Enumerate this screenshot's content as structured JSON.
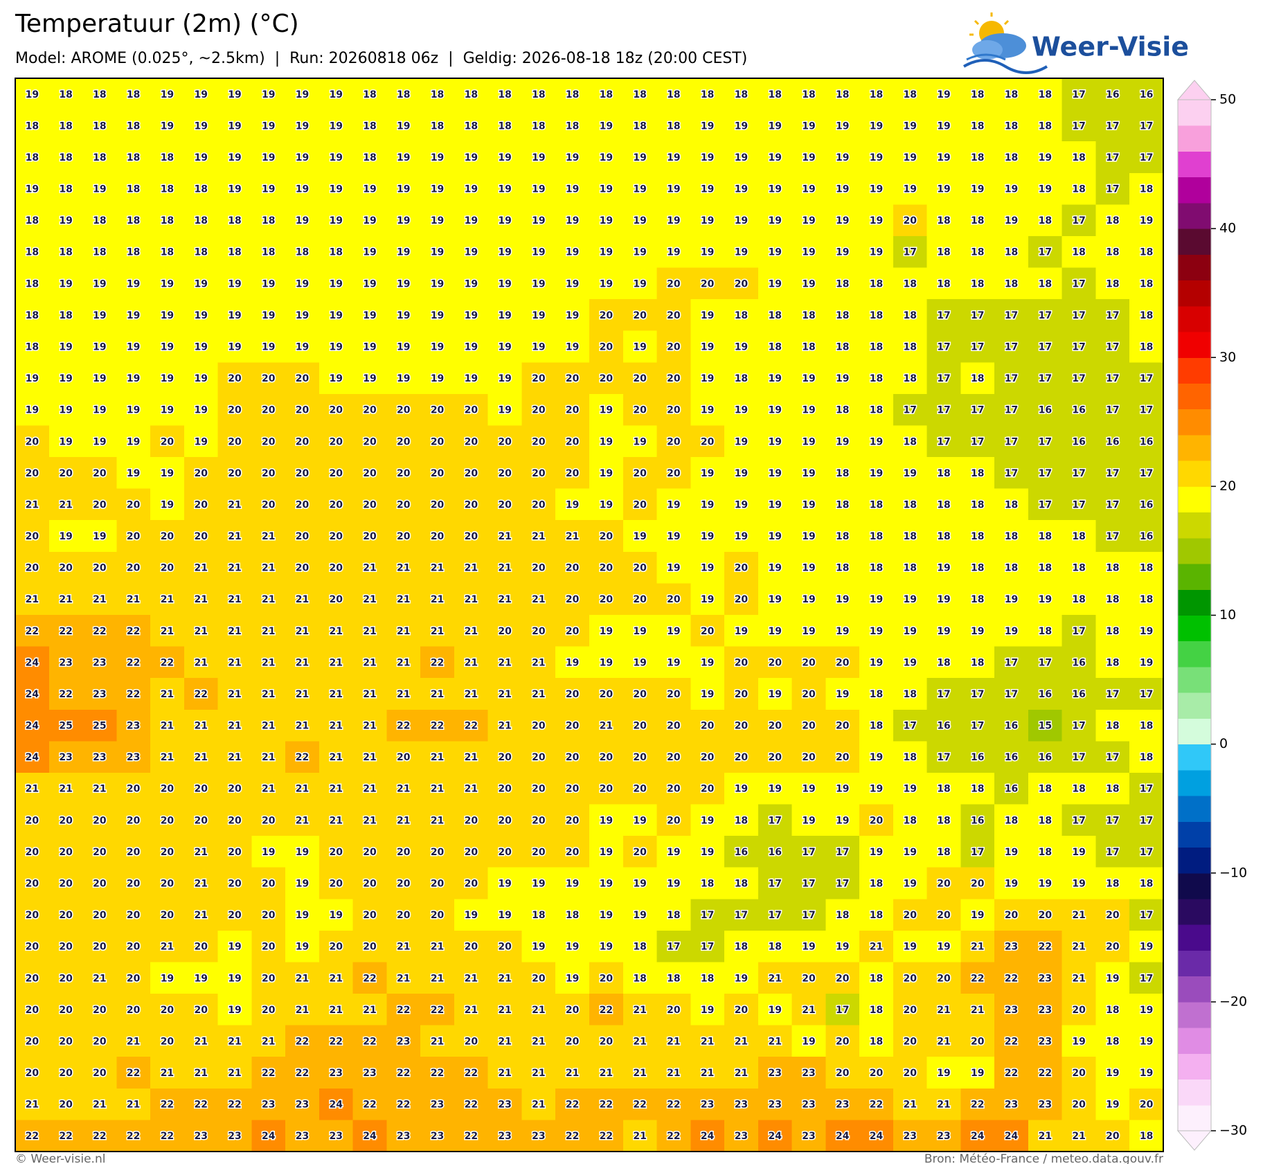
{
  "header": {
    "title": "Temperatuur (2m) (°C)",
    "subtitle": "Model: AROME (0.025°, ~2.5km)  |  Run: 20260818 06z  |  Geldig: 2026-08-18 18z (20:00 CEST)",
    "logo": "Weer-Visie"
  },
  "footer": {
    "left": "© Weer-visie.nl",
    "right": "Bron: Météo-France / meteo.data.gouv.fr"
  },
  "colorbar": {
    "lim": [
      -30,
      50
    ],
    "ticks": [
      {
        "value": -30,
        "label": "−30"
      },
      {
        "value": -20,
        "label": "−20"
      },
      {
        "value": -10,
        "label": "−10"
      },
      0,
      10,
      20,
      30,
      40,
      50
    ],
    "colors": [
      "#fdf0fd",
      "#fad8f8",
      "#f4b0f0",
      "#e08ce4",
      "#c070d0",
      "#9a4cbc",
      "#6a2aa8",
      "#4a0a8c",
      "#2a0a60",
      "#100a4c",
      "#001c80",
      "#0040a8",
      "#0070c8",
      "#00a0e0",
      "#30c8f8",
      "#d4fcdc",
      "#a8eca8",
      "#78e078",
      "#44d244",
      "#00c000",
      "#009600",
      "#5ab400",
      "#a0c800",
      "#ccd800",
      "#ffff00",
      "#ffd800",
      "#ffb400",
      "#ff8c00",
      "#ff6400",
      "#ff3c00",
      "#f00000",
      "#d80000",
      "#b40000",
      "#8c0010",
      "#5a0a30",
      "#800c70",
      "#b0009c",
      "#e040d0",
      "#f8a0dc",
      "#fcd0f0"
    ]
  },
  "map": {
    "values": [
      [
        19,
        18,
        18,
        18,
        19,
        19,
        19,
        19,
        19,
        19,
        18,
        18,
        18,
        18,
        18,
        18,
        18,
        18,
        18,
        18,
        18,
        18,
        18,
        18,
        18,
        18,
        18,
        19,
        18,
        18,
        18,
        17,
        16,
        16
      ],
      [
        18,
        18,
        18,
        18,
        19,
        19,
        19,
        19,
        19,
        19,
        18,
        19,
        18,
        18,
        18,
        18,
        18,
        19,
        18,
        18,
        19,
        19,
        19,
        19,
        19,
        19,
        19,
        19,
        18,
        18,
        18,
        17,
        17,
        17
      ],
      [
        18,
        18,
        18,
        18,
        18,
        19,
        19,
        19,
        19,
        19,
        18,
        19,
        19,
        19,
        19,
        19,
        19,
        19,
        19,
        19,
        19,
        19,
        19,
        19,
        19,
        19,
        19,
        19,
        18,
        18,
        19,
        18,
        17,
        17
      ],
      [
        19,
        18,
        19,
        18,
        18,
        18,
        19,
        19,
        19,
        19,
        19,
        19,
        19,
        19,
        19,
        19,
        19,
        19,
        19,
        19,
        19,
        19,
        19,
        19,
        19,
        19,
        19,
        19,
        19,
        19,
        19,
        18,
        17,
        18
      ],
      [
        18,
        19,
        18,
        18,
        18,
        18,
        18,
        18,
        19,
        19,
        19,
        19,
        19,
        19,
        19,
        19,
        19,
        19,
        19,
        19,
        19,
        19,
        19,
        19,
        19,
        19,
        20,
        18,
        18,
        19,
        18,
        17,
        18,
        19
      ],
      [
        18,
        18,
        18,
        18,
        18,
        18,
        18,
        18,
        18,
        18,
        19,
        19,
        19,
        19,
        19,
        19,
        19,
        19,
        19,
        19,
        19,
        19,
        19,
        19,
        19,
        19,
        17,
        18,
        18,
        18,
        17,
        18,
        18,
        18
      ],
      [
        18,
        19,
        19,
        19,
        19,
        19,
        19,
        19,
        19,
        19,
        19,
        19,
        19,
        19,
        19,
        19,
        19,
        19,
        19,
        20,
        20,
        20,
        19,
        19,
        18,
        18,
        18,
        18,
        18,
        18,
        18,
        17,
        18,
        18
      ],
      [
        18,
        18,
        19,
        19,
        19,
        19,
        19,
        19,
        19,
        19,
        19,
        19,
        19,
        19,
        19,
        19,
        19,
        20,
        20,
        20,
        19,
        18,
        18,
        18,
        18,
        18,
        18,
        17,
        17,
        17,
        17,
        17,
        17,
        18
      ],
      [
        18,
        19,
        19,
        19,
        19,
        19,
        19,
        19,
        19,
        19,
        19,
        19,
        19,
        19,
        19,
        19,
        19,
        20,
        19,
        20,
        19,
        19,
        18,
        18,
        18,
        18,
        18,
        17,
        17,
        17,
        17,
        17,
        17,
        18
      ],
      [
        19,
        19,
        19,
        19,
        19,
        19,
        20,
        20,
        20,
        19,
        19,
        19,
        19,
        19,
        19,
        20,
        20,
        20,
        20,
        20,
        19,
        18,
        19,
        19,
        19,
        18,
        18,
        17,
        18,
        17,
        17,
        17,
        17,
        17
      ],
      [
        19,
        19,
        19,
        19,
        19,
        19,
        20,
        20,
        20,
        20,
        20,
        20,
        20,
        20,
        19,
        20,
        20,
        19,
        20,
        20,
        19,
        19,
        19,
        19,
        18,
        18,
        17,
        17,
        17,
        17,
        16,
        16,
        17,
        17
      ],
      [
        20,
        19,
        19,
        19,
        20,
        19,
        20,
        20,
        20,
        20,
        20,
        20,
        20,
        20,
        20,
        20,
        20,
        19,
        19,
        20,
        20,
        19,
        19,
        19,
        19,
        19,
        18,
        17,
        17,
        17,
        17,
        16,
        16,
        16
      ],
      [
        20,
        20,
        20,
        19,
        19,
        20,
        20,
        20,
        20,
        20,
        20,
        20,
        20,
        20,
        20,
        20,
        20,
        19,
        20,
        20,
        19,
        19,
        19,
        19,
        18,
        19,
        19,
        18,
        18,
        17,
        17,
        17,
        17,
        17
      ],
      [
        21,
        21,
        20,
        20,
        19,
        20,
        21,
        20,
        20,
        20,
        20,
        20,
        20,
        20,
        20,
        20,
        19,
        19,
        20,
        19,
        19,
        19,
        19,
        19,
        18,
        18,
        18,
        18,
        18,
        18,
        17,
        17,
        17,
        16
      ],
      [
        20,
        19,
        19,
        20,
        20,
        20,
        21,
        21,
        20,
        20,
        20,
        20,
        20,
        20,
        21,
        21,
        21,
        20,
        19,
        19,
        19,
        19,
        19,
        19,
        18,
        18,
        18,
        18,
        18,
        18,
        18,
        18,
        17,
        16
      ],
      [
        20,
        20,
        20,
        20,
        20,
        21,
        21,
        21,
        20,
        20,
        21,
        21,
        21,
        21,
        21,
        20,
        20,
        20,
        20,
        19,
        19,
        20,
        19,
        19,
        18,
        18,
        18,
        19,
        18,
        18,
        18,
        18,
        18,
        18
      ],
      [
        21,
        21,
        21,
        21,
        21,
        21,
        21,
        21,
        21,
        20,
        21,
        21,
        21,
        21,
        21,
        21,
        20,
        20,
        20,
        20,
        19,
        20,
        19,
        19,
        19,
        19,
        19,
        19,
        18,
        19,
        19,
        18,
        18,
        18
      ],
      [
        22,
        22,
        22,
        22,
        21,
        21,
        21,
        21,
        21,
        21,
        21,
        21,
        21,
        21,
        20,
        20,
        20,
        19,
        19,
        19,
        20,
        19,
        19,
        19,
        19,
        19,
        19,
        19,
        19,
        19,
        18,
        17,
        18,
        19
      ],
      [
        24,
        23,
        23,
        22,
        22,
        21,
        21,
        21,
        21,
        21,
        21,
        21,
        22,
        21,
        21,
        21,
        19,
        19,
        19,
        19,
        19,
        20,
        20,
        20,
        20,
        19,
        19,
        18,
        18,
        17,
        17,
        16,
        18,
        19
      ],
      [
        24,
        22,
        23,
        22,
        21,
        22,
        21,
        21,
        21,
        21,
        21,
        21,
        21,
        21,
        21,
        21,
        20,
        20,
        20,
        20,
        19,
        20,
        19,
        20,
        19,
        18,
        18,
        17,
        17,
        17,
        16,
        16,
        17,
        17
      ],
      [
        24,
        25,
        25,
        23,
        21,
        21,
        21,
        21,
        21,
        21,
        21,
        22,
        22,
        22,
        21,
        20,
        20,
        21,
        20,
        20,
        20,
        20,
        20,
        20,
        20,
        18,
        17,
        16,
        17,
        16,
        15,
        17,
        18,
        18
      ],
      [
        24,
        23,
        23,
        23,
        21,
        21,
        21,
        21,
        22,
        21,
        21,
        20,
        21,
        21,
        20,
        20,
        20,
        20,
        20,
        20,
        20,
        20,
        20,
        20,
        20,
        19,
        18,
        17,
        16,
        16,
        16,
        17,
        17,
        18
      ],
      [
        21,
        21,
        21,
        20,
        20,
        20,
        20,
        21,
        21,
        21,
        21,
        21,
        21,
        21,
        20,
        20,
        20,
        20,
        20,
        20,
        20,
        19,
        19,
        19,
        19,
        19,
        19,
        18,
        18,
        16,
        18,
        18,
        18,
        17
      ],
      [
        20,
        20,
        20,
        20,
        20,
        20,
        20,
        20,
        21,
        21,
        21,
        21,
        21,
        20,
        20,
        20,
        20,
        19,
        19,
        20,
        19,
        18,
        17,
        19,
        19,
        20,
        18,
        18,
        16,
        18,
        18,
        17,
        17,
        17
      ],
      [
        20,
        20,
        20,
        20,
        20,
        21,
        20,
        19,
        19,
        20,
        20,
        20,
        20,
        20,
        20,
        20,
        20,
        19,
        20,
        19,
        19,
        16,
        16,
        17,
        17,
        19,
        19,
        18,
        17,
        19,
        18,
        19,
        17,
        17
      ],
      [
        20,
        20,
        20,
        20,
        20,
        21,
        20,
        20,
        19,
        20,
        20,
        20,
        20,
        20,
        19,
        19,
        19,
        19,
        19,
        19,
        18,
        18,
        17,
        17,
        17,
        18,
        19,
        20,
        20,
        19,
        19,
        19,
        18,
        18
      ],
      [
        20,
        20,
        20,
        20,
        20,
        21,
        20,
        20,
        19,
        19,
        20,
        20,
        20,
        19,
        19,
        18,
        18,
        19,
        19,
        18,
        17,
        17,
        17,
        17,
        18,
        18,
        20,
        20,
        19,
        20,
        20,
        21,
        20,
        17
      ],
      [
        20,
        20,
        20,
        20,
        21,
        20,
        19,
        20,
        19,
        20,
        20,
        21,
        21,
        20,
        20,
        19,
        19,
        19,
        18,
        17,
        17,
        18,
        18,
        19,
        19,
        21,
        19,
        19,
        21,
        23,
        22,
        21,
        20,
        19
      ],
      [
        20,
        20,
        21,
        20,
        19,
        19,
        19,
        20,
        21,
        21,
        22,
        21,
        21,
        21,
        21,
        20,
        19,
        20,
        18,
        18,
        18,
        19,
        21,
        20,
        20,
        18,
        20,
        20,
        22,
        22,
        23,
        21,
        19,
        17
      ],
      [
        20,
        20,
        20,
        20,
        20,
        20,
        19,
        20,
        21,
        21,
        21,
        22,
        22,
        21,
        21,
        21,
        20,
        22,
        21,
        20,
        19,
        20,
        19,
        21,
        17,
        18,
        20,
        21,
        21,
        23,
        23,
        20,
        18,
        19
      ],
      [
        20,
        20,
        20,
        21,
        20,
        21,
        21,
        21,
        22,
        22,
        22,
        23,
        21,
        20,
        21,
        21,
        20,
        20,
        21,
        21,
        21,
        21,
        21,
        19,
        20,
        18,
        20,
        21,
        20,
        22,
        23,
        19,
        18,
        19
      ],
      [
        20,
        20,
        20,
        22,
        21,
        21,
        21,
        22,
        22,
        23,
        23,
        22,
        22,
        22,
        21,
        21,
        21,
        21,
        21,
        21,
        21,
        21,
        23,
        23,
        20,
        20,
        20,
        19,
        19,
        22,
        22,
        20,
        19,
        19
      ],
      [
        21,
        20,
        21,
        21,
        22,
        22,
        22,
        23,
        23,
        24,
        22,
        22,
        23,
        22,
        23,
        21,
        22,
        22,
        22,
        22,
        23,
        23,
        23,
        23,
        23,
        22,
        21,
        21,
        22,
        23,
        23,
        20,
        19,
        20
      ],
      [
        22,
        22,
        22,
        22,
        22,
        23,
        23,
        24,
        23,
        23,
        24,
        23,
        23,
        22,
        23,
        23,
        22,
        22,
        21,
        22,
        24,
        23,
        24,
        23,
        24,
        24,
        23,
        23,
        24,
        24,
        21,
        21,
        20,
        18
      ]
    ]
  }
}
